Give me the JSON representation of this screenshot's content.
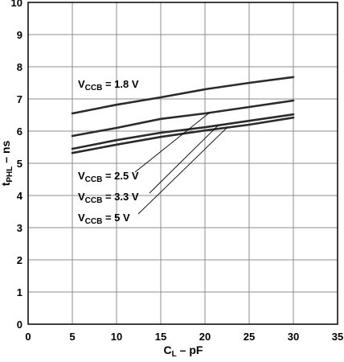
{
  "chart_data": {
    "type": "line",
    "xlabel": {
      "main": "C",
      "sub": "L",
      "rest": " – pF"
    },
    "ylabel": {
      "main": "t",
      "sub": "PHL",
      "rest": " – ns"
    },
    "xlim": [
      0,
      35
    ],
    "ylim": [
      0,
      10
    ],
    "x_ticks": [
      0,
      5,
      10,
      15,
      20,
      25,
      30,
      35
    ],
    "y_ticks": [
      0,
      1,
      2,
      3,
      4,
      5,
      6,
      7,
      8,
      9,
      10
    ],
    "grid": true,
    "x": [
      5,
      10,
      15,
      20,
      25,
      30
    ],
    "series": [
      {
        "name": {
          "main": "V",
          "sub": "CCB",
          "rest": " = 1.8 V"
        },
        "values": [
          6.55,
          6.82,
          7.05,
          7.3,
          7.5,
          7.68
        ]
      },
      {
        "name": {
          "main": "V",
          "sub": "CCB",
          "rest": " = 2.5 V"
        },
        "values": [
          5.85,
          6.1,
          6.38,
          6.55,
          6.75,
          6.95
        ]
      },
      {
        "name": {
          "main": "V",
          "sub": "CCB",
          "rest": " = 3.3 V"
        },
        "values": [
          5.45,
          5.72,
          5.95,
          6.12,
          6.32,
          6.52
        ]
      },
      {
        "name": {
          "main": "V",
          "sub": "CCB",
          "rest": " = 5 V"
        },
        "values": [
          5.32,
          5.58,
          5.82,
          6.02,
          6.2,
          6.42
        ]
      }
    ]
  }
}
